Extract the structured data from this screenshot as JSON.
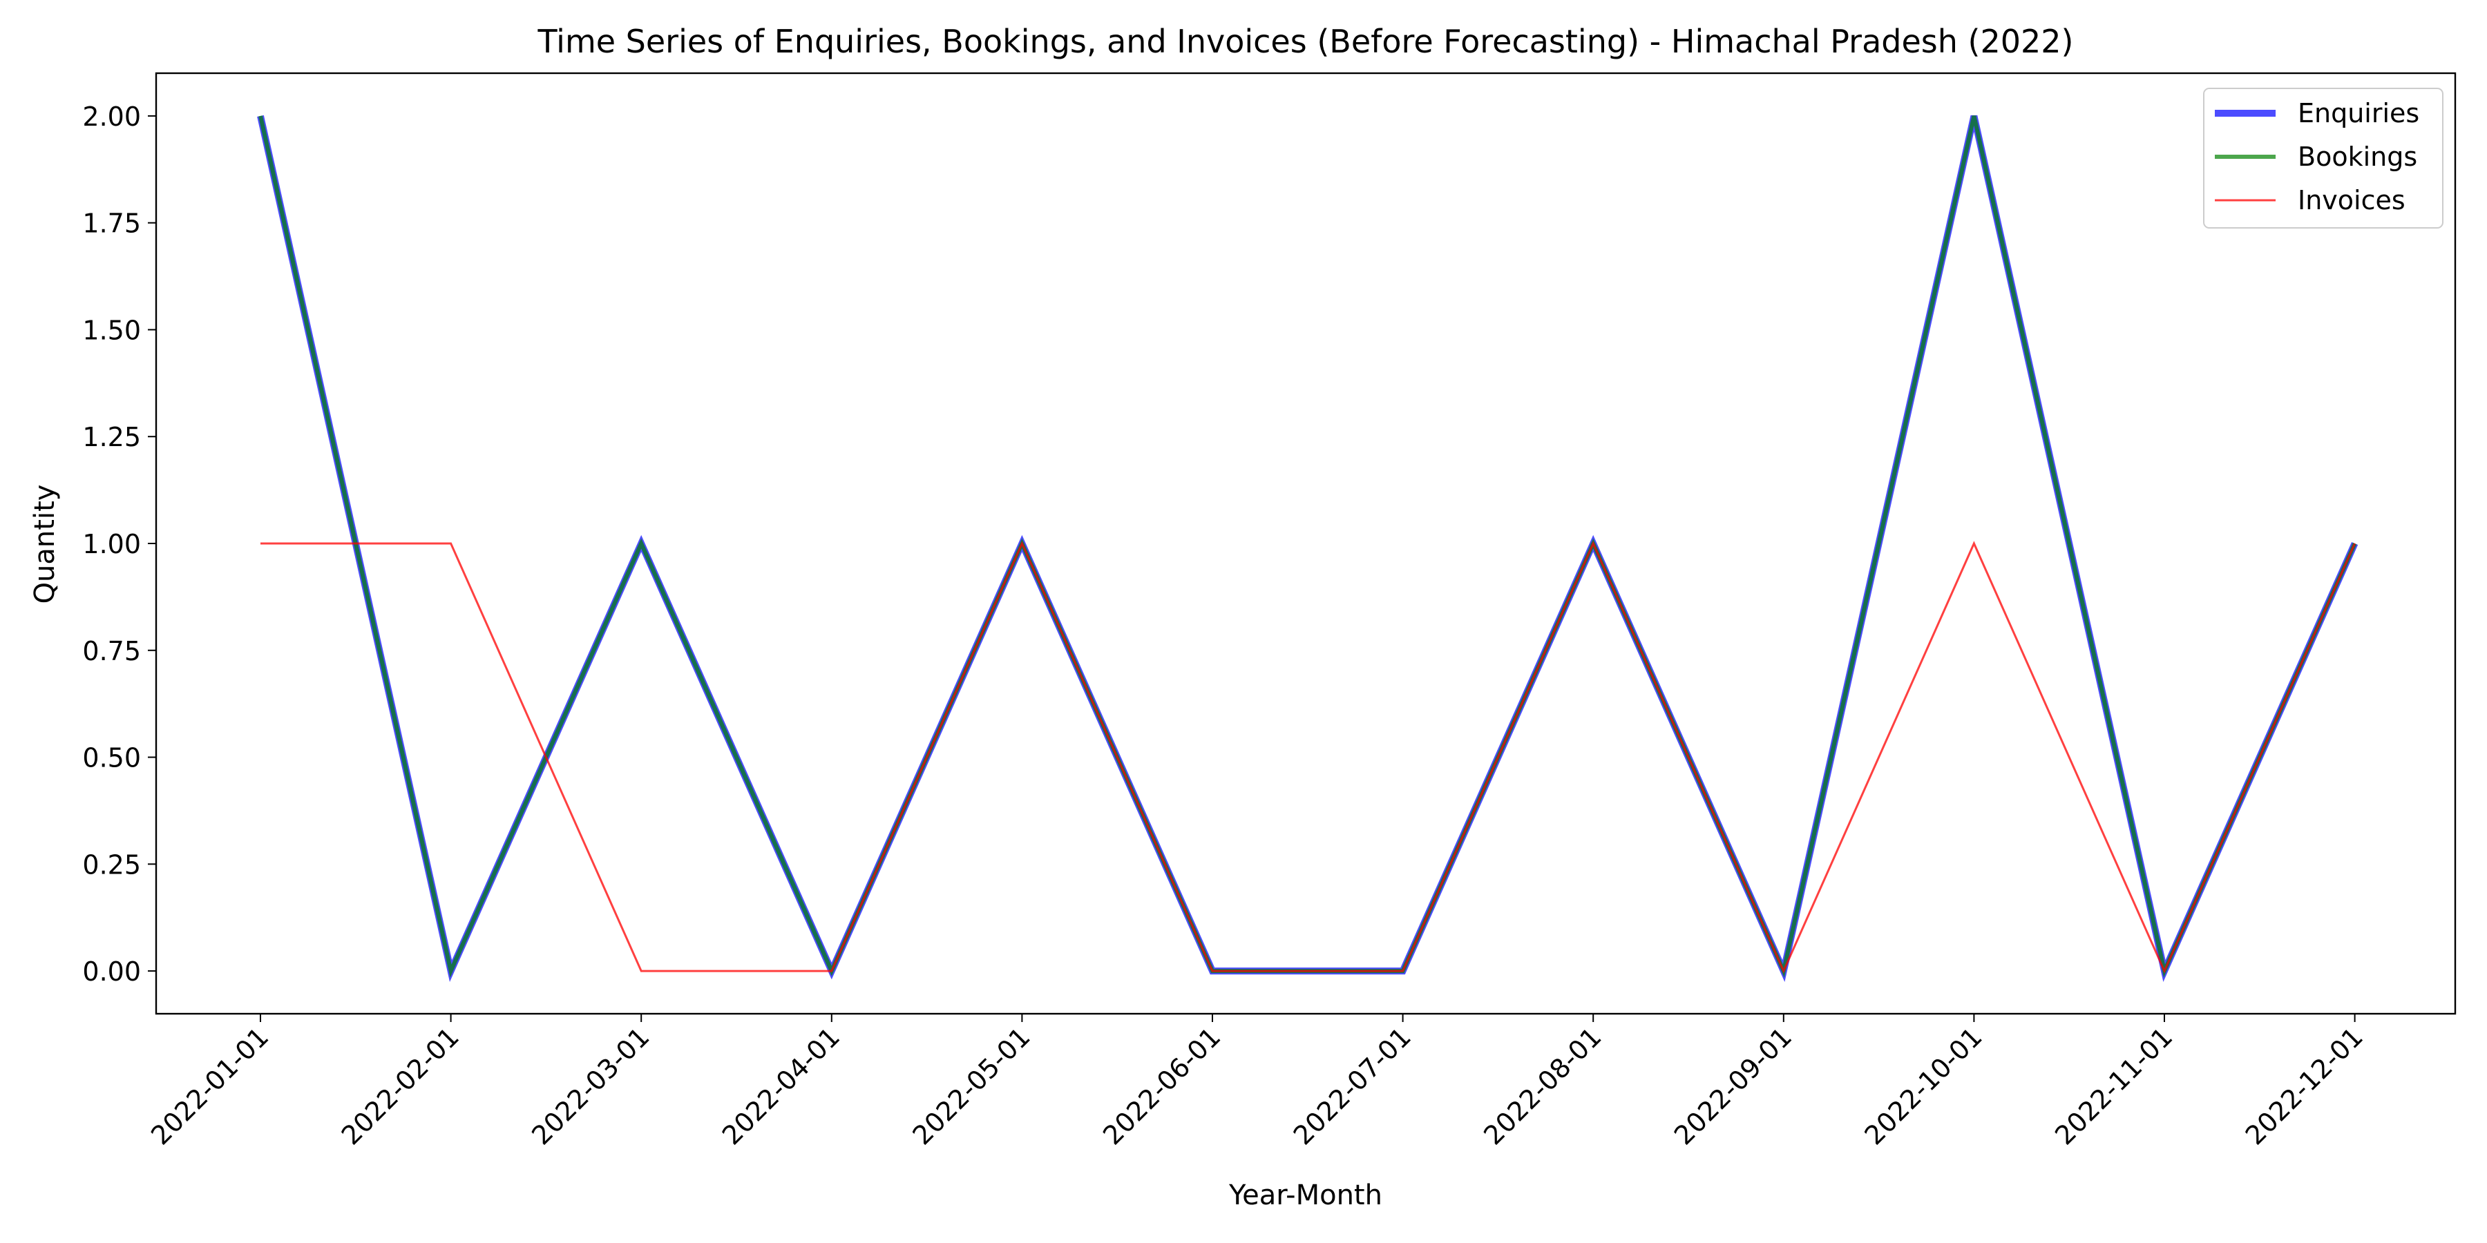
{
  "chart_data": {
    "type": "line",
    "title": "Time Series of Enquiries, Bookings, and Invoices (Before Forecasting) - Himachal Pradesh (2022)",
    "xlabel": "Year-Month",
    "ylabel": "Quantity",
    "x": [
      "2022-01-01",
      "2022-02-01",
      "2022-03-01",
      "2022-04-01",
      "2022-05-01",
      "2022-06-01",
      "2022-07-01",
      "2022-08-01",
      "2022-09-01",
      "2022-10-01",
      "2022-11-01",
      "2022-12-01"
    ],
    "ylim": [
      -0.1,
      2.1
    ],
    "yticks": [
      "0.00",
      "0.25",
      "0.50",
      "0.75",
      "1.00",
      "1.25",
      "1.50",
      "1.75",
      "2.00"
    ],
    "grid": false,
    "legend_position": "top-right",
    "series": [
      {
        "name": "Enquiries",
        "color": "#0000ff",
        "values": [
          2,
          0,
          1,
          0,
          1,
          0,
          0,
          1,
          0,
          2,
          0,
          1
        ]
      },
      {
        "name": "Bookings",
        "color": "#008000",
        "values": [
          2,
          0,
          1,
          0,
          1,
          0,
          0,
          1,
          0,
          2,
          0,
          1
        ]
      },
      {
        "name": "Invoices",
        "color": "#ff0000",
        "values": [
          1,
          1,
          0,
          0,
          1,
          0,
          0,
          1,
          0,
          1,
          0,
          1
        ]
      }
    ]
  }
}
